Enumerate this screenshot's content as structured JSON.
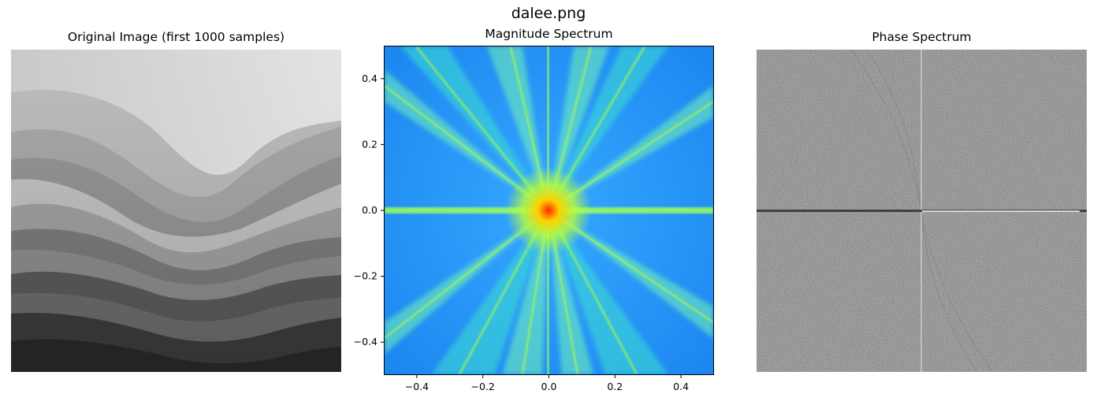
{
  "figure": {
    "suptitle": "dalee.png"
  },
  "colors": {
    "magnitude_background": "#1e90ff",
    "magnitude_streak": "#b8ff3a",
    "magnitude_center": "#ff2a00",
    "phase_gray": "#7a7a7a"
  },
  "chart_data": [
    {
      "type": "image",
      "title": "Original Image (first 1000 samples)",
      "axes_visible": false,
      "colormap": "gray",
      "description_values": "grayscale wavy layered landscape"
    },
    {
      "type": "heatmap",
      "title": "Magnitude Spectrum",
      "xlabel": "",
      "ylabel": "",
      "xlim": [
        -0.5,
        0.5
      ],
      "ylim": [
        -0.5,
        0.5
      ],
      "xticks": [
        -0.4,
        -0.2,
        0.0,
        0.2,
        0.4
      ],
      "xtick_labels": [
        "−0.4",
        "−0.2",
        "0.0",
        "0.2",
        "0.4"
      ],
      "yticks": [
        0.4,
        0.2,
        0.0,
        -0.2,
        -0.4
      ],
      "ytick_labels": [
        "0.4",
        "0.2",
        "0.0",
        "−0.2",
        "−0.4"
      ],
      "colormap": "jet",
      "grid": false
    },
    {
      "type": "image",
      "title": "Phase Spectrum",
      "axes_visible": false,
      "colormap": "gray"
    }
  ]
}
